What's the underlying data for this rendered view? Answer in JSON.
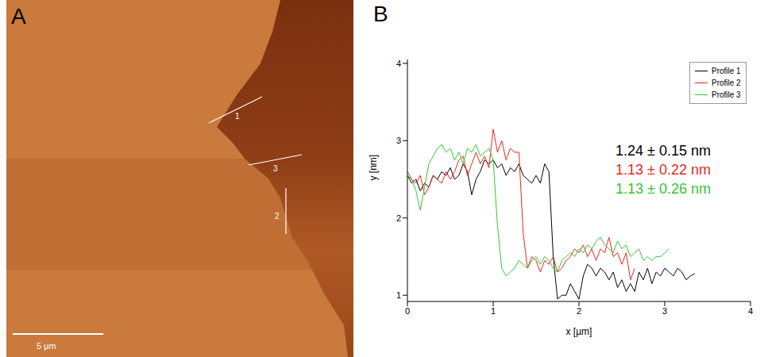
{
  "panel_a": {
    "label": "A",
    "scale_bar": "5 µm",
    "profile_labels": [
      "1",
      "2",
      "3"
    ]
  },
  "chart_data": {
    "type": "line",
    "panel": "B",
    "x_label": "x [µm]",
    "y_label": "y [nm]",
    "xlim": [
      0,
      4
    ],
    "xticks": [
      0,
      1,
      2,
      3,
      4
    ],
    "ylim": [
      0.92,
      4.05
    ],
    "yticks": [
      1,
      2,
      3,
      4
    ],
    "grid": false,
    "legend": "upper right",
    "series": [
      {
        "name": "Profile 1",
        "color": "#000000",
        "annotation": "1.24 ± 0.15 nm",
        "x": [
          0,
          0.05,
          0.1,
          0.15,
          0.2,
          0.25,
          0.3,
          0.35,
          0.4,
          0.45,
          0.5,
          0.55,
          0.6,
          0.65,
          0.7,
          0.75,
          0.8,
          0.85,
          0.9,
          0.95,
          1.0,
          1.05,
          1.1,
          1.15,
          1.2,
          1.25,
          1.3,
          1.35,
          1.4,
          1.45,
          1.5,
          1.55,
          1.6,
          1.65,
          1.7,
          1.75,
          1.8,
          1.85,
          1.9,
          1.95,
          2.0,
          2.05,
          2.1,
          2.15,
          2.2,
          2.25,
          2.3,
          2.35,
          2.4,
          2.45,
          2.5,
          2.55,
          2.6,
          2.65,
          2.7,
          2.75,
          2.8,
          2.85,
          2.9,
          2.95,
          3.0,
          3.05,
          3.1,
          3.15,
          3.2,
          3.25,
          3.3,
          3.35
        ],
        "values": [
          2.55,
          2.45,
          2.5,
          2.35,
          2.45,
          2.4,
          2.55,
          2.5,
          2.6,
          2.55,
          2.65,
          2.5,
          2.55,
          2.7,
          2.6,
          2.3,
          2.5,
          2.6,
          2.75,
          2.7,
          2.75,
          2.65,
          2.7,
          2.55,
          2.65,
          2.6,
          2.7,
          2.55,
          2.5,
          2.45,
          2.55,
          2.45,
          2.7,
          2.6,
          1.5,
          0.95,
          1.0,
          1.0,
          1.15,
          1.05,
          0.95,
          1.25,
          1.4,
          1.35,
          1.25,
          1.35,
          1.3,
          1.2,
          1.3,
          1.1,
          1.2,
          1.05,
          1.15,
          1.05,
          1.3,
          1.2,
          1.35,
          1.15,
          1.3,
          1.25,
          1.35,
          1.3,
          1.25,
          1.35,
          1.3,
          1.2,
          1.25,
          1.28
        ]
      },
      {
        "name": "Profile 2",
        "color": "#e8291c",
        "annotation": "1.13 ± 0.22 nm",
        "x": [
          0,
          0.05,
          0.1,
          0.15,
          0.2,
          0.25,
          0.3,
          0.35,
          0.4,
          0.45,
          0.5,
          0.55,
          0.6,
          0.65,
          0.7,
          0.75,
          0.8,
          0.85,
          0.9,
          0.95,
          1.0,
          1.05,
          1.1,
          1.15,
          1.2,
          1.25,
          1.3,
          1.35,
          1.4,
          1.45,
          1.5,
          1.55,
          1.6,
          1.65,
          1.7,
          1.75,
          1.8,
          1.85,
          1.9,
          1.95,
          2.0,
          2.05,
          2.1,
          2.15,
          2.2,
          2.25,
          2.3,
          2.35,
          2.4,
          2.45,
          2.5,
          2.55,
          2.6,
          2.65
        ],
        "values": [
          2.6,
          2.5,
          2.45,
          2.55,
          2.3,
          2.4,
          2.55,
          2.5,
          2.45,
          2.6,
          2.5,
          2.6,
          2.75,
          2.8,
          2.55,
          2.7,
          2.85,
          2.7,
          2.8,
          2.65,
          3.15,
          2.85,
          3.0,
          2.75,
          2.9,
          2.85,
          2.85,
          1.8,
          1.35,
          1.5,
          1.45,
          1.3,
          1.45,
          1.4,
          1.5,
          1.3,
          1.35,
          1.45,
          1.5,
          1.6,
          1.55,
          1.65,
          1.5,
          1.6,
          1.45,
          1.6,
          1.55,
          1.75,
          1.5,
          1.55,
          1.4,
          1.55,
          1.2,
          1.35
        ]
      },
      {
        "name": "Profile 3",
        "color": "#33c733",
        "annotation": "1.13 ± 0.26 nm",
        "x": [
          0,
          0.05,
          0.1,
          0.15,
          0.2,
          0.25,
          0.3,
          0.35,
          0.4,
          0.45,
          0.5,
          0.55,
          0.6,
          0.65,
          0.7,
          0.75,
          0.8,
          0.85,
          0.9,
          0.95,
          1.0,
          1.05,
          1.1,
          1.15,
          1.2,
          1.25,
          1.3,
          1.35,
          1.4,
          1.45,
          1.5,
          1.55,
          1.6,
          1.65,
          1.7,
          1.75,
          1.8,
          1.85,
          1.9,
          1.95,
          2.0,
          2.05,
          2.1,
          2.15,
          2.2,
          2.25,
          2.3,
          2.35,
          2.4,
          2.45,
          2.5,
          2.55,
          2.6,
          2.65,
          2.7,
          2.75,
          2.8,
          2.85,
          2.9,
          2.95,
          3.0,
          3.05
        ],
        "values": [
          2.55,
          2.5,
          2.35,
          2.1,
          2.4,
          2.7,
          2.8,
          2.9,
          2.95,
          2.85,
          2.9,
          2.75,
          2.85,
          2.7,
          2.9,
          2.85,
          2.95,
          2.8,
          2.85,
          2.9,
          2.75,
          1.9,
          1.35,
          1.25,
          1.3,
          1.35,
          1.45,
          1.4,
          1.35,
          1.45,
          1.5,
          1.4,
          1.5,
          1.45,
          1.35,
          1.3,
          1.45,
          1.5,
          1.55,
          1.5,
          1.6,
          1.55,
          1.65,
          1.6,
          1.7,
          1.75,
          1.65,
          1.6,
          1.55,
          1.7,
          1.6,
          1.65,
          1.5,
          1.55,
          1.6,
          1.45,
          1.5,
          1.45,
          1.5,
          1.5,
          1.55,
          1.6
        ]
      }
    ]
  }
}
